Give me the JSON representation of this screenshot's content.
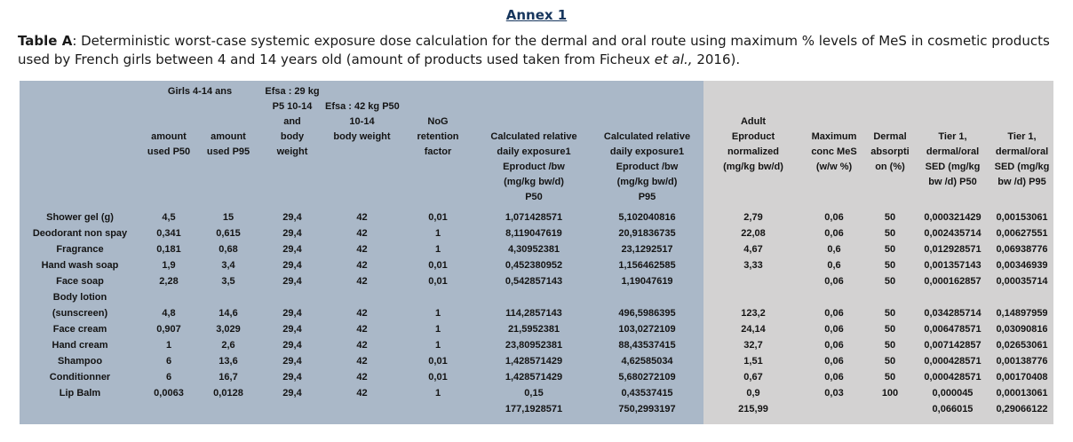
{
  "page": {
    "title": "Annex 1"
  },
  "caption": {
    "label": "Table A",
    "text1": ": Deterministic worst-case systemic exposure dose calculation for the dermal and oral route using maximum % levels of MeS in cosmetic products used by French girls between 4 and 14 years old (amount of products used taken from Ficheux ",
    "italic": "et al.,",
    "text2": " 2016)."
  },
  "table": {
    "group_header": "Girls 4-14 ans",
    "headers": [
      {
        "name": "header-product",
        "lines": [],
        "pad": 0
      },
      {
        "name": "header-amount-used-p50",
        "lines": [
          "amount",
          "used P50"
        ],
        "pad": 3
      },
      {
        "name": "header-amount-used-p95",
        "lines": [
          "amount",
          "used P95"
        ],
        "pad": 3
      },
      {
        "name": "header-efsa-29kg-body-weight",
        "lines": [
          "Efsa : 29 kg",
          "P5 10-14",
          "and",
          "body",
          "weight"
        ],
        "pad": 0
      },
      {
        "name": "header-efsa-42kg-body-weight",
        "lines": [
          "Efsa : 42 kg P50",
          "10-14",
          "body weight"
        ],
        "pad": 1
      },
      {
        "name": "header-nog-retention-factor",
        "lines": [
          "NoG",
          "retention",
          "factor"
        ],
        "pad": 2
      },
      {
        "name": "header-calculated-exposure-p50",
        "lines": [
          "Calculated relative",
          "daily exposure1",
          "Eproduct /bw",
          "(mg/kg bw/d)",
          "P50"
        ],
        "pad": 3
      },
      {
        "name": "header-calculated-exposure-p95",
        "lines": [
          "Calculated relative",
          "daily exposure1",
          "Eproduct /bw",
          "(mg/kg bw/d)",
          "P95"
        ],
        "pad": 3
      },
      {
        "name": "header-adult-eproduct-normalized",
        "lines": [
          "Adult",
          "Eproduct",
          "normalized",
          "(mg/kg bw/d)"
        ],
        "pad": 2
      },
      {
        "name": "header-maximum-conc-mes",
        "lines": [
          "Maximum",
          "conc MeS",
          "(w/w %)"
        ],
        "pad": 3
      },
      {
        "name": "header-dermal-absorption",
        "lines": [
          "Dermal",
          "absorpti",
          "on (%)"
        ],
        "pad": 3
      },
      {
        "name": "header-tier1-sed-p50",
        "lines": [
          "Tier 1,",
          "dermal/oral",
          "SED (mg/kg",
          "bw /d) P50"
        ],
        "pad": 3
      },
      {
        "name": "header-tier1-sed-p95",
        "lines": [
          "Tier 1,",
          "dermal/oral",
          "SED (mg/kg",
          "bw /d) P95"
        ],
        "pad": 3
      }
    ],
    "rows": [
      {
        "name": "row-shower-gel",
        "label": [
          "Shower gel (g)"
        ],
        "values": [
          "4,5",
          "15",
          "29,4",
          "42",
          "0,01",
          "1,071428571",
          "5,102040816",
          "2,79",
          "0,06",
          "50",
          "0,000321429",
          "0,00153061"
        ]
      },
      {
        "name": "row-deodorant",
        "label": [
          "Deodorant non spay"
        ],
        "values": [
          "0,341",
          "0,615",
          "29,4",
          "42",
          "1",
          "8,119047619",
          "20,91836735",
          "22,08",
          "0,06",
          "50",
          "0,002435714",
          "0,00627551"
        ]
      },
      {
        "name": "row-fragrance",
        "label": [
          "Fragrance"
        ],
        "values": [
          "0,181",
          "0,68",
          "29,4",
          "42",
          "1",
          "4,30952381",
          "23,1292517",
          "4,67",
          "0,6",
          "50",
          "0,012928571",
          "0,06938776"
        ]
      },
      {
        "name": "row-hand-wash-soap",
        "label": [
          "Hand wash soap"
        ],
        "values": [
          "1,9",
          "3,4",
          "29,4",
          "42",
          "0,01",
          "0,452380952",
          "1,156462585",
          "3,33",
          "0,6",
          "50",
          "0,001357143",
          "0,00346939"
        ]
      },
      {
        "name": "row-face-soap",
        "label": [
          "Face soap"
        ],
        "values": [
          "2,28",
          "3,5",
          "29,4",
          "42",
          "0,01",
          "0,542857143",
          "1,19047619",
          "",
          "0,06",
          "50",
          "0,000162857",
          "0,00035714"
        ]
      },
      {
        "name": "row-body-lotion-sunscreen",
        "label": [
          "Body lotion",
          "(sunscreen)"
        ],
        "values": [
          "4,8",
          "14,6",
          "29,4",
          "42",
          "1",
          "114,2857143",
          "496,5986395",
          "123,2",
          "0,06",
          "50",
          "0,034285714",
          "0,14897959"
        ]
      },
      {
        "name": "row-face-cream",
        "label": [
          "Face cream"
        ],
        "values": [
          "0,907",
          "3,029",
          "29,4",
          "42",
          "1",
          "21,5952381",
          "103,0272109",
          "24,14",
          "0,06",
          "50",
          "0,006478571",
          "0,03090816"
        ]
      },
      {
        "name": "row-hand-cream",
        "label": [
          "Hand cream"
        ],
        "values": [
          "1",
          "2,6",
          "29,4",
          "42",
          "1",
          "23,80952381",
          "88,43537415",
          "32,7",
          "0,06",
          "50",
          "0,007142857",
          "0,02653061"
        ]
      },
      {
        "name": "row-shampoo",
        "label": [
          "Shampoo"
        ],
        "values": [
          "6",
          "13,6",
          "29,4",
          "42",
          "0,01",
          "1,428571429",
          "4,62585034",
          "1,51",
          "0,06",
          "50",
          "0,000428571",
          "0,00138776"
        ]
      },
      {
        "name": "row-conditionner",
        "label": [
          "Conditionner"
        ],
        "values": [
          "6",
          "16,7",
          "29,4",
          "42",
          "0,01",
          "1,428571429",
          "5,680272109",
          "0,67",
          "0,06",
          "50",
          "0,000428571",
          "0,00170408"
        ]
      },
      {
        "name": "row-lip-balm",
        "label": [
          "Lip Balm"
        ],
        "values": [
          "0,0063",
          "0,0128",
          "29,4",
          "42",
          "1",
          "0,15",
          "0,43537415",
          "0,9",
          "0,03",
          "100",
          "0,000045",
          "0,00013061"
        ]
      },
      {
        "name": "row-total",
        "label": [
          ""
        ],
        "values": [
          "",
          "",
          "",
          "",
          "",
          "177,1928571",
          "750,2993197",
          "215,99",
          "",
          "",
          "0,066015",
          "0,29066122"
        ]
      }
    ]
  },
  "colors": {
    "section_blue": "#aab8c8",
    "section_grey": "#d3d2d2",
    "title_blue": "#17365d"
  }
}
